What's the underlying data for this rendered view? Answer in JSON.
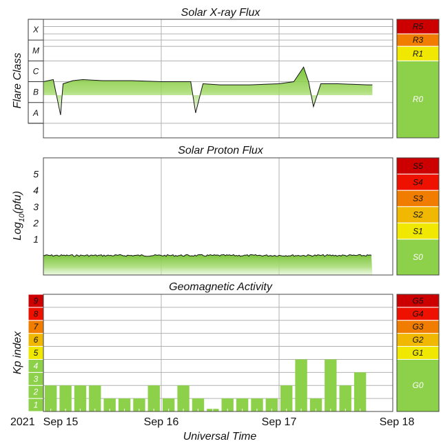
{
  "chart_data": [
    {
      "type": "area",
      "title": "Solar X-ray Flux",
      "ylabel": "Flare Class",
      "y_classes": [
        "A",
        "B",
        "C",
        "M",
        "X"
      ],
      "ylim": [
        -8.7,
        -3.0
      ],
      "x": [
        "2021-09-15T00:00",
        "2021-09-15T02:00",
        "2021-09-15T03:30",
        "2021-09-15T04:00",
        "2021-09-15T06:00",
        "2021-09-15T08:00",
        "2021-09-15T12:00",
        "2021-09-15T18:00",
        "2021-09-16T00:00",
        "2021-09-16T06:00",
        "2021-09-16T07:00",
        "2021-09-16T08:30",
        "2021-09-16T12:00",
        "2021-09-16T18:00",
        "2021-09-17T00:00",
        "2021-09-17T03:00",
        "2021-09-17T05:00",
        "2021-09-17T06:00",
        "2021-09-17T07:00",
        "2021-09-17T08:30",
        "2021-09-17T12:00",
        "2021-09-17T18:00",
        "2021-09-17T19:00"
      ],
      "values": [
        -6.0,
        -5.9,
        -7.6,
        -6.1,
        -5.95,
        -5.9,
        -5.95,
        -5.95,
        -6.0,
        -6.0,
        -7.5,
        -6.1,
        -6.15,
        -6.15,
        -6.1,
        -6.0,
        -5.3,
        -6.0,
        -7.2,
        -6.1,
        -6.1,
        -6.15,
        -6.15
      ],
      "scale": [
        {
          "label": "R5",
          "color": "#cc0000",
          "min": -3.7,
          "max": -3.0
        },
        {
          "label": "R3",
          "color": "#f07d00",
          "min": -4.3,
          "max": -3.7
        },
        {
          "label": "R1",
          "color": "#f0e800",
          "min": -5.0,
          "max": -4.3
        },
        {
          "label": "R0",
          "color": "#8dd14a",
          "min": -8.7,
          "max": -5.0
        }
      ]
    },
    {
      "type": "area",
      "title": "Solar Proton Flux",
      "ylabel": "Log10(pfu)",
      "y_ticks": [
        1,
        2,
        3,
        4,
        5
      ],
      "ylim": [
        -1.2,
        6.0
      ],
      "x": [
        "2021-09-15T00:00",
        "2021-09-17T19:00"
      ],
      "values": [
        0.0,
        0.0
      ],
      "scale": [
        {
          "label": "S5",
          "color": "#cc0000",
          "min": 5,
          "max": 6
        },
        {
          "label": "S4",
          "color": "#ee1100",
          "min": 4,
          "max": 5
        },
        {
          "label": "S3",
          "color": "#f07d00",
          "min": 3,
          "max": 4
        },
        {
          "label": "S2",
          "color": "#f0b800",
          "min": 2,
          "max": 3
        },
        {
          "label": "S1",
          "color": "#f0e800",
          "min": 1,
          "max": 2
        },
        {
          "label": "S0",
          "color": "#8dd14a",
          "min": -1.2,
          "max": 1
        }
      ]
    },
    {
      "type": "bar",
      "title": "Geomagnetic Activity",
      "ylabel": "Kp index",
      "ylim": [
        0,
        9
      ],
      "values": [
        2.0,
        2.0,
        2.0,
        2.0,
        1.0,
        1.0,
        1.0,
        2.0,
        1.0,
        2.0,
        1.0,
        0.2,
        1.0,
        1.0,
        1.0,
        1.0,
        2.0,
        4.0,
        1.0,
        4.0,
        2.0,
        3.0
      ],
      "kp_levels": [
        {
          "label": "1",
          "color": "#8dd14a"
        },
        {
          "label": "2",
          "color": "#8dd14a"
        },
        {
          "label": "3",
          "color": "#8dd14a"
        },
        {
          "label": "4",
          "color": "#8dd14a"
        },
        {
          "label": "5",
          "color": "#f0e800"
        },
        {
          "label": "6",
          "color": "#f0b800"
        },
        {
          "label": "7",
          "color": "#f07d00"
        },
        {
          "label": "8",
          "color": "#ee1100"
        },
        {
          "label": "9",
          "color": "#cc0000"
        }
      ],
      "scale": [
        {
          "label": "G5",
          "color": "#cc0000",
          "min": 8,
          "max": 9
        },
        {
          "label": "G4",
          "color": "#ee1100",
          "min": 7,
          "max": 8
        },
        {
          "label": "G3",
          "color": "#f07d00",
          "min": 6,
          "max": 7
        },
        {
          "label": "G2",
          "color": "#f0b800",
          "min": 5,
          "max": 6
        },
        {
          "label": "G1",
          "color": "#f0e800",
          "min": 4,
          "max": 5
        },
        {
          "label": "G0",
          "color": "#8dd14a",
          "min": 0,
          "max": 4
        }
      ]
    }
  ],
  "x_axis": {
    "year_label": "2021",
    "ticks": [
      "Sep 15",
      "Sep 16",
      "Sep 17",
      "Sep 18"
    ],
    "xlabel": "Universal Time"
  },
  "colors": {
    "data_fill": "#8dd14a",
    "data_line": "#111111",
    "grid": "#b0b0b0"
  }
}
